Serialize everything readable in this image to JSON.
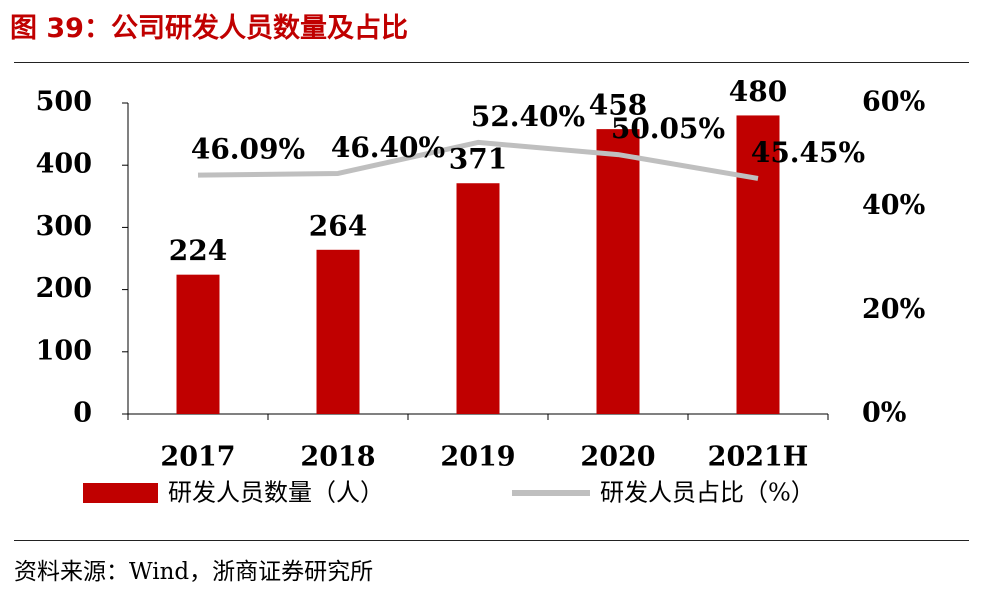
{
  "figure": {
    "title": "图 39：公司研发人员数量及占比",
    "source": "资料来源：Wind，浙商证券研究所"
  },
  "colors": {
    "bar": "#c00000",
    "line": "#bfbfbf",
    "title": "#c00000",
    "text": "#000000"
  },
  "chart_data": {
    "type": "bar",
    "title": "公司研发人员数量及占比",
    "categories": [
      "2017",
      "2018",
      "2019",
      "2020",
      "2021H"
    ],
    "series": [
      {
        "name": "研发人员数量（人）",
        "type": "bar",
        "axis": "left",
        "values": [
          224,
          264,
          371,
          458,
          480
        ],
        "labels": [
          "224",
          "264",
          "371",
          "458",
          "480"
        ]
      },
      {
        "name": "研发人员占比（%）",
        "type": "line",
        "axis": "right",
        "values": [
          46.09,
          46.4,
          52.4,
          50.05,
          45.45
        ],
        "labels": [
          "46.09%",
          "46.40%",
          "52.40%",
          "50.05%",
          "45.45%"
        ]
      }
    ],
    "y_left": {
      "min": 0,
      "max": 500,
      "ticks": [
        0,
        100,
        200,
        300,
        400,
        500
      ],
      "tick_labels": [
        "0",
        "100",
        "200",
        "300",
        "400",
        "500"
      ]
    },
    "y_right": {
      "min": 0,
      "max": 60,
      "ticks": [
        0,
        20,
        40,
        60
      ],
      "tick_labels": [
        "0%",
        "20%",
        "40%",
        "60%"
      ]
    },
    "grid": false,
    "legend_position": "bottom"
  }
}
